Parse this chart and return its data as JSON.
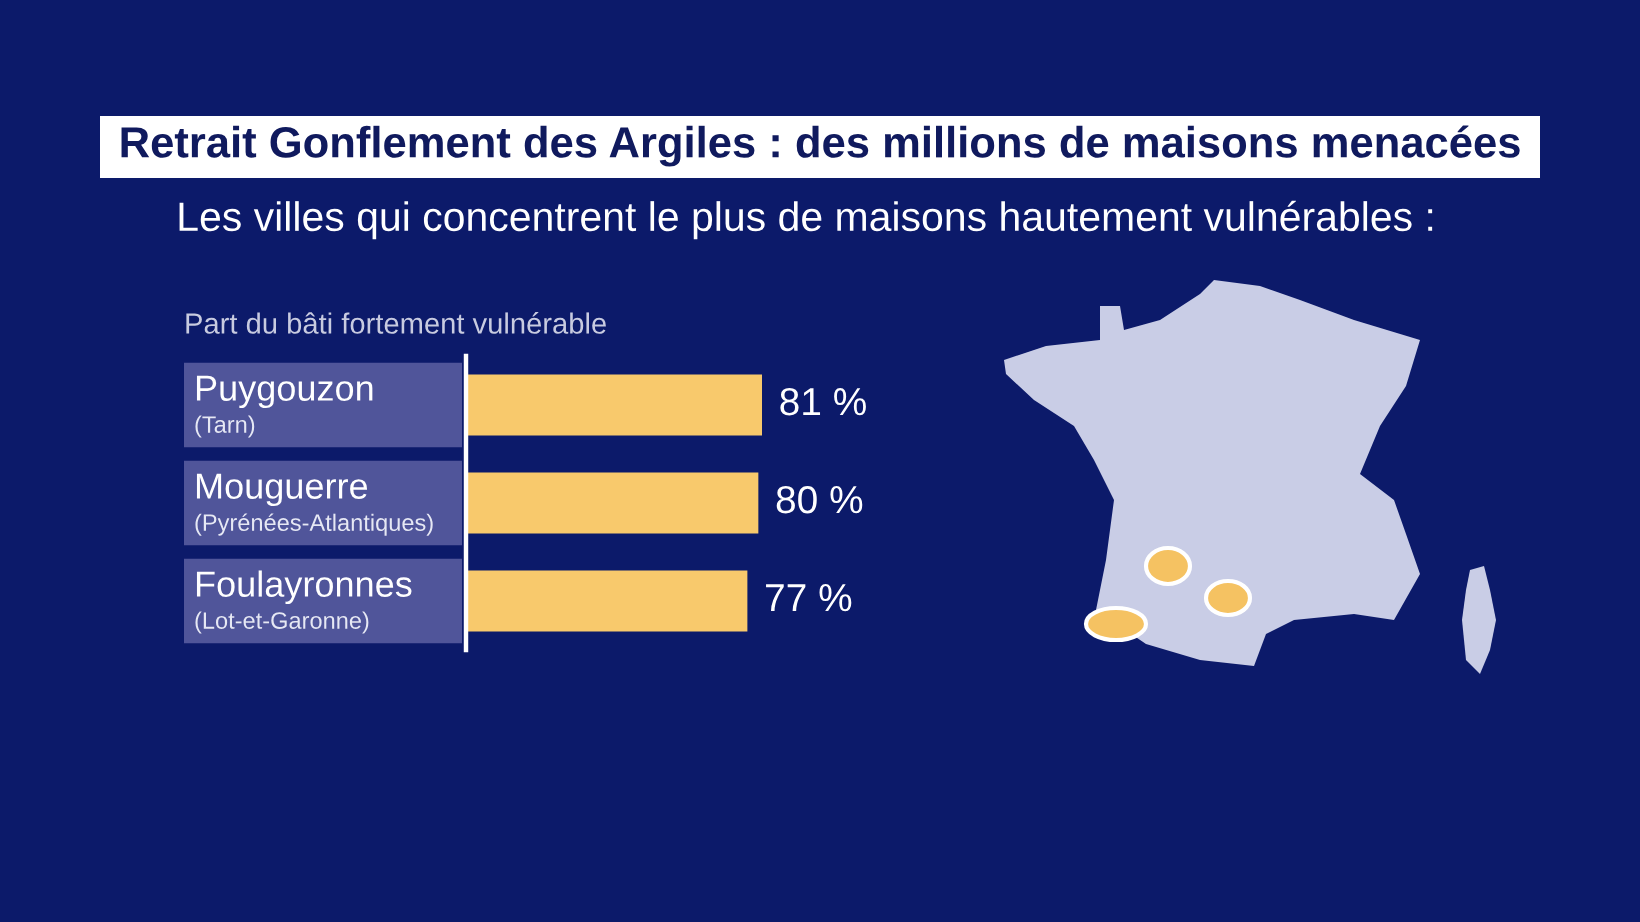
{
  "chart_data": {
    "type": "bar",
    "orientation": "horizontal",
    "title": "Retrait Gonflement des Argiles : des millions de maisons menacées",
    "subtitle": "Les villes qui concentrent le plus de maisons hautement vulnérables :",
    "xlabel": "Part du bâti fortement vulnérable",
    "categories": [
      "Puygouzon\n(Tarn)",
      "Mouguerre\n(Pyrénées-Atlantiques)",
      "Foulayronnes\n(Lot-et-Garonne)"
    ],
    "values": [
      81,
      80,
      77
    ],
    "value_labels": [
      "81 %",
      "80 %",
      "77 %"
    ],
    "color": "#f8c96c",
    "tick_labels": "y"
  }
}
